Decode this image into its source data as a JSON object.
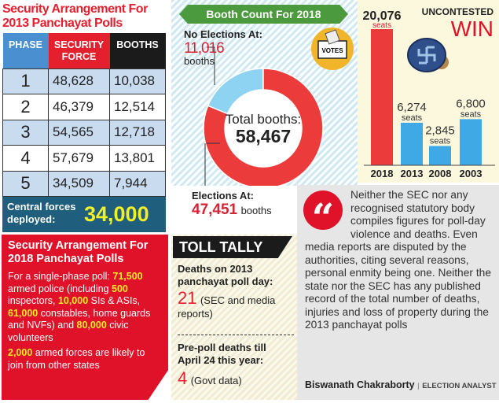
{
  "security_2013": {
    "title": "Security Arrangement For 2013 Panchayat Polls",
    "headers": [
      "PHASE",
      "SECURITY FORCE",
      "BOOTHS"
    ],
    "header_colors": [
      "#4a8fd0",
      "#e4202e",
      "#1b1b1b"
    ],
    "rows": [
      [
        "1",
        "48,628",
        "10,038"
      ],
      [
        "2",
        "46,379",
        "12,514"
      ],
      [
        "3",
        "54,565",
        "12,718"
      ],
      [
        "4",
        "57,679",
        "13,801"
      ],
      [
        "5",
        "34,509",
        "7,944"
      ]
    ],
    "central_label": "Central forces deployed:",
    "central_value": "34,000"
  },
  "security_2018": {
    "title": "Security Arrangement For 2018 Panchayat Polls",
    "p1": [
      "For a single-phase poll: ",
      "71,500",
      " armed police (including ",
      "500",
      " inspectors, ",
      "10,000",
      " SIs & ASIs, ",
      "61,000",
      " constables, home guards and NVFs) and ",
      "80,000",
      " civic volunteers"
    ],
    "p2": [
      "2,000",
      " armed forces are likely to join from other states"
    ]
  },
  "booth_count": {
    "title": "Booth Count For 2018",
    "no_elections_label": "No Elections At:",
    "no_elections_value": "11,016",
    "no_elections_unit": "booths",
    "elections_label": "Elections At:",
    "elections_value": "47,451",
    "elections_unit": "booths",
    "total_label": "Total booths:",
    "total_value": "58,467",
    "votes_icon_label": "VOTES"
  },
  "toll_tally": {
    "title": "TOLL TALLY",
    "q1": "Deaths on 2013 panchayat poll day:",
    "v1": "21",
    "n1": "(SEC and media reports)",
    "q2": "Pre-poll deaths till April 24 this year:",
    "v2": "4",
    "n2": "(Govt data)"
  },
  "quote": {
    "text": "Neither the SEC nor any recognised statutory body compiles figures for poll-day violence and deaths. Even media reports are disputed by the authorities, citing several reasons, personal enmity being one. Neither the state nor the SEC has any published record of the total number of deaths, injuries and loss of property during the 2013 panchayat polls",
    "author": "Biswanath Chakraborty",
    "role": "ELECTION ANALYST"
  },
  "chart_data": [
    {
      "type": "pie",
      "title": "Booth Count For 2018",
      "slices": [
        {
          "label": "No Elections At",
          "value": 11016,
          "color": "#8fd3f2"
        },
        {
          "label": "Elections At",
          "value": 47451,
          "color": "#ec3b3b"
        }
      ],
      "total": 58467
    },
    {
      "type": "bar",
      "title": "UNCONTESTED WIN",
      "title_parts": [
        "UNCONTESTED",
        "WIN"
      ],
      "categories": [
        "2018",
        "2013",
        "2008",
        "2003"
      ],
      "values": [
        20076,
        6274,
        2845,
        6800
      ],
      "labels": [
        "20,076",
        "6,274",
        "2,845",
        "6,800"
      ],
      "unit": "seats",
      "colors": [
        "#ec3b3b",
        "#3fa9e6",
        "#3fa9e6",
        "#3fa9e6"
      ]
    }
  ]
}
